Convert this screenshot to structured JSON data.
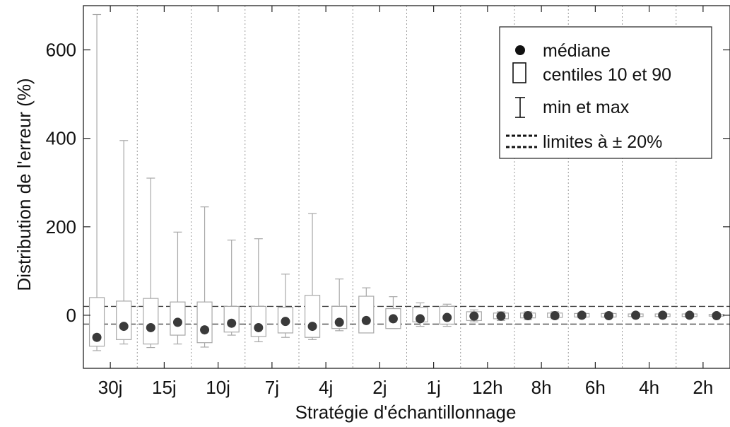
{
  "chart_data": {
    "type": "box",
    "xlabel": "Stratégie d'échantillonnage",
    "ylabel": "Distribution de l'erreur (%)",
    "ylim": [
      -120,
      700
    ],
    "yticks": [
      0,
      200,
      400,
      600
    ],
    "grid": "vertical dotted separators between category pairs",
    "reference_lines": [
      20,
      -20
    ],
    "categories": [
      "30j",
      "15j",
      "10j",
      "7j",
      "4j",
      "2j",
      "1j",
      "12h",
      "8h",
      "6h",
      "4h",
      "2h"
    ],
    "boxes_per_category": 2,
    "series": [
      {
        "name": "médiane",
        "values": [
          -50,
          -25,
          -28,
          -16,
          -33,
          -18,
          -28,
          -14,
          -25,
          -16,
          -12,
          -8,
          -8,
          -5,
          -2,
          -2,
          -1,
          -1,
          0,
          -1,
          0,
          0,
          0,
          -1
        ]
      },
      {
        "name": "centiles 10 et 90",
        "values": [
          [
            -70,
            40
          ],
          [
            -55,
            32
          ],
          [
            -65,
            38
          ],
          [
            -45,
            30
          ],
          [
            -62,
            30
          ],
          [
            -38,
            20
          ],
          [
            -48,
            20
          ],
          [
            -40,
            18
          ],
          [
            -50,
            45
          ],
          [
            -30,
            20
          ],
          [
            -40,
            43
          ],
          [
            -30,
            15
          ],
          [
            -15,
            18
          ],
          [
            -20,
            20
          ],
          [
            -12,
            8
          ],
          [
            -8,
            5
          ],
          [
            -6,
            5
          ],
          [
            -5,
            5
          ],
          [
            -4,
            4
          ],
          [
            -4,
            4
          ],
          [
            -3,
            3
          ],
          [
            -3,
            3
          ],
          [
            -3,
            3
          ],
          [
            -2,
            2
          ]
        ]
      },
      {
        "name": "min et max",
        "values": [
          [
            -80,
            680
          ],
          [
            -65,
            395
          ],
          [
            -73,
            310
          ],
          [
            -65,
            188
          ],
          [
            -72,
            245
          ],
          [
            -45,
            170
          ],
          [
            -60,
            173
          ],
          [
            -50,
            93
          ],
          [
            -55,
            230
          ],
          [
            -35,
            82
          ],
          [
            -35,
            62
          ],
          [
            -30,
            42
          ],
          [
            -25,
            28
          ],
          [
            -25,
            25
          ],
          [
            -15,
            12
          ],
          [
            -12,
            8
          ],
          [
            -10,
            8
          ],
          [
            -8,
            8
          ],
          [
            -6,
            6
          ],
          [
            -6,
            6
          ],
          [
            -5,
            5
          ],
          [
            -5,
            5
          ],
          [
            -5,
            5
          ],
          [
            -4,
            4
          ]
        ]
      }
    ],
    "legend": {
      "position": "top-right",
      "entries": [
        "médiane",
        "centiles 10 et 90",
        "min et max",
        "limites à ± 20%"
      ]
    },
    "colors": {
      "box": "#a8a8a8",
      "median": "#3a3a3a",
      "frame": "#222222",
      "reference": "#444444",
      "separator": "#9a9a9a"
    }
  }
}
